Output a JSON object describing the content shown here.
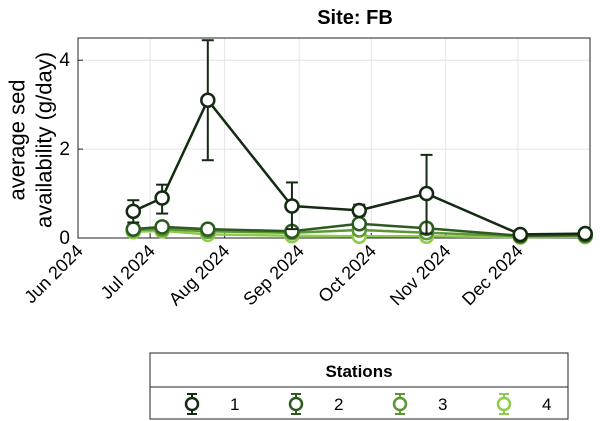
{
  "chart_data": {
    "type": "line",
    "title": "Site: FB",
    "ylabel": "average sed\navailability (g/day)",
    "xlabel": "",
    "ylim": [
      0,
      4.5
    ],
    "y_ticks": [
      0,
      2,
      4
    ],
    "x_range": [
      "2024-06-01",
      "2024-12-31"
    ],
    "x_ticks": [
      {
        "date": "2024-06-01",
        "label": "Jun 2024"
      },
      {
        "date": "2024-07-01",
        "label": "Jul 2024"
      },
      {
        "date": "2024-08-01",
        "label": "Aug 2024"
      },
      {
        "date": "2024-09-01",
        "label": "Sep 2024"
      },
      {
        "date": "2024-10-01",
        "label": "Oct 2024"
      },
      {
        "date": "2024-11-01",
        "label": "Nov 2024"
      },
      {
        "date": "2024-12-01",
        "label": "Dec 2024"
      }
    ],
    "grid": true,
    "legend": {
      "title": "Stations",
      "placement": "below"
    },
    "series": [
      {
        "name": "1",
        "color": "#142a12",
        "points": [
          {
            "x": "2024-06-24",
            "y": 0.6,
            "lo": 0.35,
            "hi": 0.85
          },
          {
            "x": "2024-07-06",
            "y": 0.9,
            "lo": 0.55,
            "hi": 1.2
          },
          {
            "x": "2024-07-25",
            "y": 3.1,
            "lo": 1.75,
            "hi": 4.45
          },
          {
            "x": "2024-08-29",
            "y": 0.72,
            "lo": 0.2,
            "hi": 1.25
          },
          {
            "x": "2024-09-26",
            "y": 0.62,
            "lo": 0.5,
            "hi": 0.75
          },
          {
            "x": "2024-10-24",
            "y": 1.0,
            "lo": 0.1,
            "hi": 1.87
          },
          {
            "x": "2024-12-02",
            "y": 0.08,
            "lo": 0.03,
            "hi": 0.13
          },
          {
            "x": "2024-12-29",
            "y": 0.1,
            "lo": 0.05,
            "hi": 0.15
          }
        ]
      },
      {
        "name": "2",
        "color": "#2d5a22",
        "points": [
          {
            "x": "2024-06-24",
            "y": 0.2,
            "lo": 0.12,
            "hi": 0.28
          },
          {
            "x": "2024-07-06",
            "y": 0.25,
            "lo": 0.17,
            "hi": 0.33
          },
          {
            "x": "2024-07-25",
            "y": 0.2,
            "lo": 0.13,
            "hi": 0.27
          },
          {
            "x": "2024-08-29",
            "y": 0.15,
            "lo": 0.09,
            "hi": 0.21
          },
          {
            "x": "2024-09-26",
            "y": 0.32,
            "lo": 0.24,
            "hi": 0.4
          },
          {
            "x": "2024-10-24",
            "y": 0.22,
            "lo": 0.15,
            "hi": 0.29
          },
          {
            "x": "2024-12-02",
            "y": 0.05,
            "lo": 0.02,
            "hi": 0.08
          },
          {
            "x": "2024-12-29",
            "y": 0.07,
            "lo": 0.03,
            "hi": 0.11
          }
        ]
      },
      {
        "name": "3",
        "color": "#5e9634",
        "points": [
          {
            "x": "2024-06-24",
            "y": 0.18,
            "lo": 0.12,
            "hi": 0.24
          },
          {
            "x": "2024-07-06",
            "y": 0.2,
            "lo": 0.14,
            "hi": 0.26
          },
          {
            "x": "2024-07-25",
            "y": 0.15,
            "lo": 0.1,
            "hi": 0.2
          },
          {
            "x": "2024-08-29",
            "y": 0.12,
            "lo": 0.08,
            "hi": 0.16
          },
          {
            "x": "2024-09-26",
            "y": 0.18,
            "lo": 0.12,
            "hi": 0.24
          },
          {
            "x": "2024-10-24",
            "y": 0.12,
            "lo": 0.08,
            "hi": 0.16
          },
          {
            "x": "2024-12-02",
            "y": 0.04,
            "lo": 0.01,
            "hi": 0.07
          },
          {
            "x": "2024-12-29",
            "y": 0.05,
            "lo": 0.02,
            "hi": 0.08
          }
        ]
      },
      {
        "name": "4",
        "color": "#8ccc4a",
        "points": [
          {
            "x": "2024-06-24",
            "y": 0.14,
            "lo": 0.09,
            "hi": 0.19
          },
          {
            "x": "2024-07-06",
            "y": 0.16,
            "lo": 0.11,
            "hi": 0.21
          },
          {
            "x": "2024-07-25",
            "y": 0.08,
            "lo": 0.04,
            "hi": 0.12
          },
          {
            "x": "2024-08-29",
            "y": 0.05,
            "lo": 0.02,
            "hi": 0.08
          },
          {
            "x": "2024-09-26",
            "y": 0.04,
            "lo": 0.01,
            "hi": 0.07
          },
          {
            "x": "2024-10-24",
            "y": 0.04,
            "lo": 0.01,
            "hi": 0.07
          },
          {
            "x": "2024-12-02",
            "y": 0.02,
            "lo": 0.0,
            "hi": 0.04
          },
          {
            "x": "2024-12-29",
            "y": 0.03,
            "lo": 0.0,
            "hi": 0.06
          }
        ]
      }
    ]
  }
}
